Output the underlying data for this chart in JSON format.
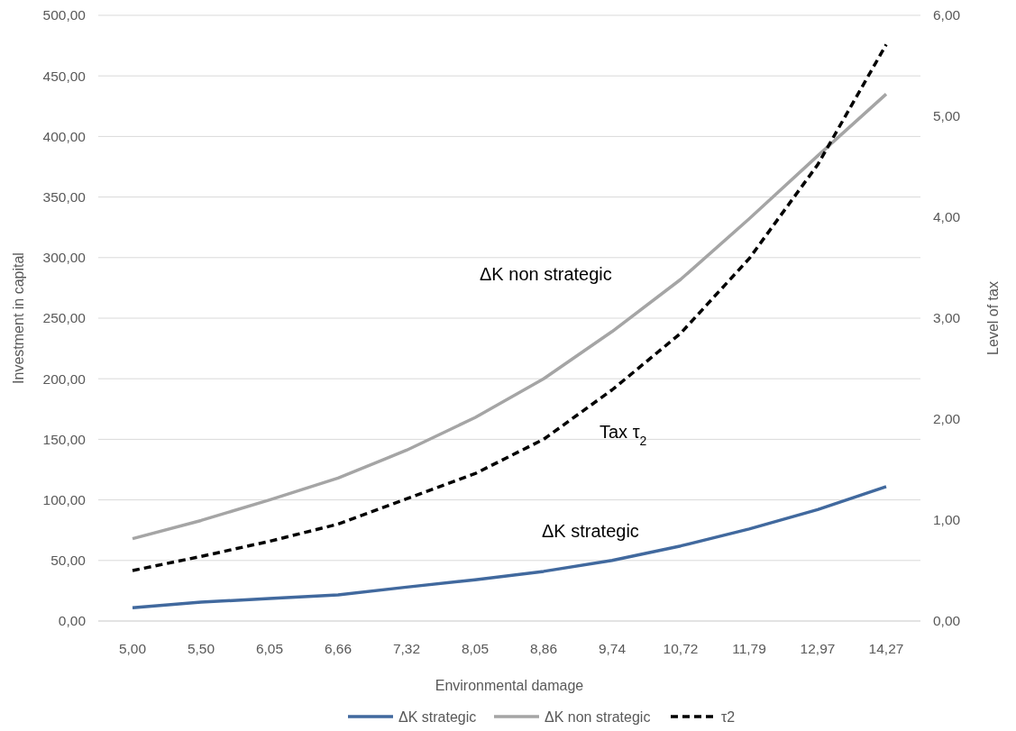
{
  "chart_data": {
    "type": "line",
    "xlabel": "Environmental damage",
    "ylabel": "Investment in capital",
    "y2label": "Level  of tax",
    "categories": [
      "5,00",
      "5,50",
      "6,05",
      "6,66",
      "7,32",
      "8,05",
      "8,86",
      "9,74",
      "10,72",
      "11,79",
      "12,97",
      "14,27"
    ],
    "series": [
      {
        "name": "ΔK strategic",
        "color": "#41699e",
        "line_style": "solid",
        "values": [
          11,
          15.6,
          18.6,
          21.6,
          28,
          34,
          41,
          50,
          62,
          76,
          92,
          111
        ]
      },
      {
        "name": "ΔK non strategic",
        "color": "#a5a5a5",
        "line_style": "solid",
        "values": [
          68,
          83,
          100,
          118,
          141,
          168,
          200,
          239,
          282,
          332,
          384,
          435
        ]
      },
      {
        "name": "τ2",
        "color": "#000000",
        "line_style": "dashed",
        "axis": "y2",
        "values": [
          0.5,
          0.64,
          0.79,
          0.96,
          1.21,
          1.46,
          1.8,
          2.29,
          2.85,
          3.59,
          4.52,
          5.71
        ]
      }
    ],
    "ylim": [
      0,
      500
    ],
    "yticks": [
      {
        "value": 0,
        "label": "0,00"
      },
      {
        "value": 50,
        "label": "50,00"
      },
      {
        "value": 100,
        "label": "100,00"
      },
      {
        "value": 150,
        "label": "150,00"
      },
      {
        "value": 200,
        "label": "200,00"
      },
      {
        "value": 250,
        "label": "250,00"
      },
      {
        "value": 300,
        "label": "300,00"
      },
      {
        "value": 350,
        "label": "350,00"
      },
      {
        "value": 400,
        "label": "400,00"
      },
      {
        "value": 450,
        "label": "450,00"
      },
      {
        "value": 500,
        "label": "500,00"
      }
    ],
    "y2lim": [
      0,
      6
    ],
    "y2ticks": [
      {
        "value": 0,
        "label": "0,00"
      },
      {
        "value": 1,
        "label": "1,00"
      },
      {
        "value": 2,
        "label": "2,00"
      },
      {
        "value": 3,
        "label": "3,00"
      },
      {
        "value": 4,
        "label": "4,00"
      },
      {
        "value": 5,
        "label": "5,00"
      },
      {
        "value": 6,
        "label": "6,00"
      }
    ],
    "annotations": [
      "ΔK non strategic",
      "Tax τ$_{2}$",
      "ΔK strategic"
    ],
    "grid": "y",
    "legend": "bottom",
    "marker": "none"
  }
}
